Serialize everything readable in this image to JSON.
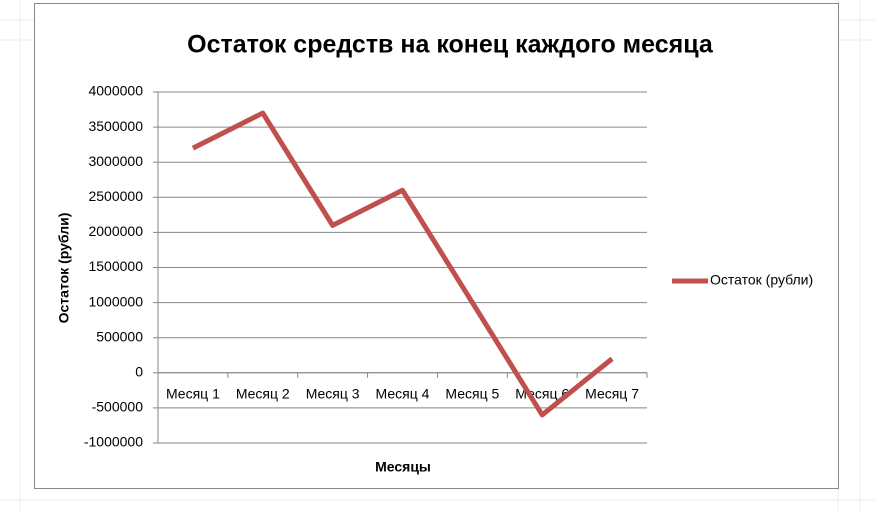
{
  "chart_data": {
    "type": "line",
    "title": "Остаток средств на конец каждого месяца",
    "x_label": "Месяцы",
    "y_label": "Остаток (рубли)",
    "categories": [
      "Месяц 1",
      "Месяц 2",
      "Месяц 3",
      "Месяц 4",
      "Месяц 5",
      "Месяц 6",
      "Месяц 7"
    ],
    "series": [
      {
        "name": "Остаток (рубли)",
        "color": "#c0504d",
        "values": [
          3200000,
          3700000,
          2100000,
          2600000,
          1000000,
          -600000,
          200000
        ]
      }
    ],
    "ylim": [
      -1000000,
      4000000
    ],
    "yticks": [
      -1000000,
      -500000,
      0,
      500000,
      1000000,
      1500000,
      2000000,
      2500000,
      3000000,
      3500000,
      4000000
    ],
    "grid": true,
    "legend": "right"
  }
}
